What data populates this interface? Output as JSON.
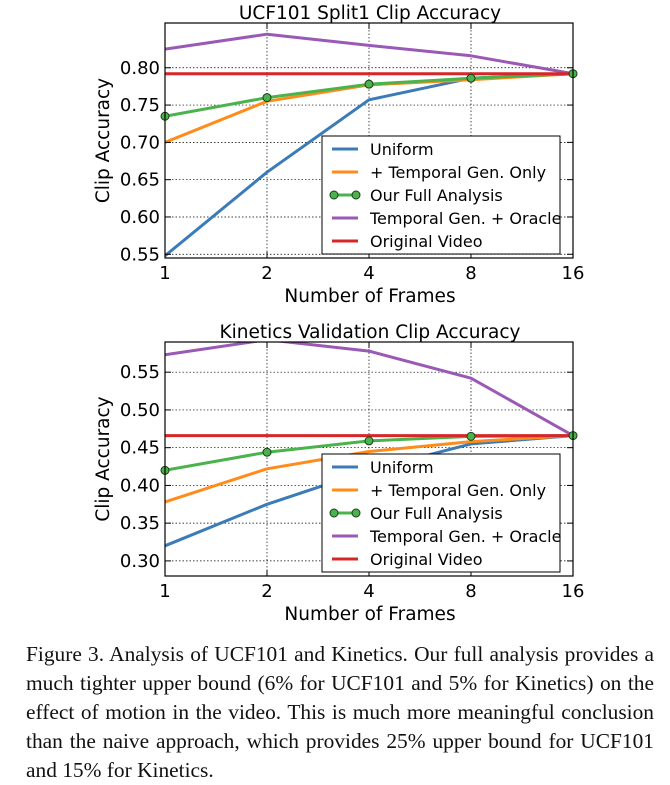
{
  "chart_data": [
    {
      "type": "line",
      "title": "UCF101 Split1 Clip Accuracy",
      "xlabel": "Number of Frames",
      "ylabel": "Clip Accuracy",
      "x_scale": "log2",
      "x": [
        1,
        2,
        4,
        8,
        16
      ],
      "x_tick_labels": [
        "1",
        "2",
        "4",
        "8",
        "16"
      ],
      "ylim": [
        0.545,
        0.86
      ],
      "y_ticks": [
        0.55,
        0.6,
        0.65,
        0.7,
        0.75,
        0.8
      ],
      "y_tick_labels": [
        "0.55",
        "0.60",
        "0.65",
        "0.70",
        "0.75",
        "0.80"
      ],
      "grid": true,
      "legend_position": "lower-right",
      "series": [
        {
          "name": "Uniform",
          "color": "#3b7bb8",
          "marker": "none",
          "values": [
            0.548,
            0.66,
            0.757,
            0.786,
            0.792
          ]
        },
        {
          "name": "+ Temporal Gen. Only",
          "color": "#ff8c1a",
          "marker": "none",
          "values": [
            0.7,
            0.755,
            0.777,
            0.784,
            0.792
          ]
        },
        {
          "name": "Our Full Analysis",
          "color": "#4bb34b",
          "marker": "circle",
          "values": [
            0.735,
            0.76,
            0.778,
            0.786,
            0.792
          ]
        },
        {
          "name": "Temporal Gen. + Oracle",
          "color": "#9b59b6",
          "marker": "none",
          "values": [
            0.825,
            0.845,
            0.83,
            0.816,
            0.792
          ]
        },
        {
          "name": "Original Video",
          "color": "#d62728",
          "marker": "none",
          "values": [
            0.792,
            0.792,
            0.792,
            0.792,
            0.792
          ]
        }
      ]
    },
    {
      "type": "line",
      "title": "Kinetics Validation Clip Accuracy",
      "xlabel": "Number of Frames",
      "ylabel": "Clip Accuracy",
      "x_scale": "log2",
      "x": [
        1,
        2,
        4,
        8,
        16
      ],
      "x_tick_labels": [
        "1",
        "2",
        "4",
        "8",
        "16"
      ],
      "ylim": [
        0.28,
        0.59
      ],
      "y_ticks": [
        0.3,
        0.35,
        0.4,
        0.45,
        0.5,
        0.55
      ],
      "y_tick_labels": [
        "0.30",
        "0.35",
        "0.40",
        "0.45",
        "0.50",
        "0.55"
      ],
      "grid": true,
      "legend_position": "lower-right",
      "series": [
        {
          "name": "Uniform",
          "color": "#3b7bb8",
          "marker": "none",
          "values": [
            0.32,
            0.375,
            0.42,
            0.455,
            0.466
          ]
        },
        {
          "name": "+ Temporal Gen. Only",
          "color": "#ff8c1a",
          "marker": "none",
          "values": [
            0.378,
            0.422,
            0.445,
            0.458,
            0.466
          ]
        },
        {
          "name": "Our Full Analysis",
          "color": "#4bb34b",
          "marker": "circle",
          "values": [
            0.42,
            0.444,
            0.459,
            0.465,
            0.466
          ]
        },
        {
          "name": "Temporal Gen. + Oracle",
          "color": "#9b59b6",
          "marker": "none",
          "values": [
            0.573,
            0.593,
            0.578,
            0.542,
            0.466
          ]
        },
        {
          "name": "Original Video",
          "color": "#d62728",
          "marker": "none",
          "values": [
            0.466,
            0.466,
            0.466,
            0.466,
            0.466
          ]
        }
      ]
    }
  ],
  "caption": "Figure 3. Analysis of UCF101 and Kinetics. Our full analysis pro­vides a much tighter upper bound (6% for UCF101 and 5% for Kinetics) on the effect of motion in the video. This is much more meaningful conclusion than the naive approach, which provides 25% upper bound for UCF101 and 15% for Kinetics."
}
